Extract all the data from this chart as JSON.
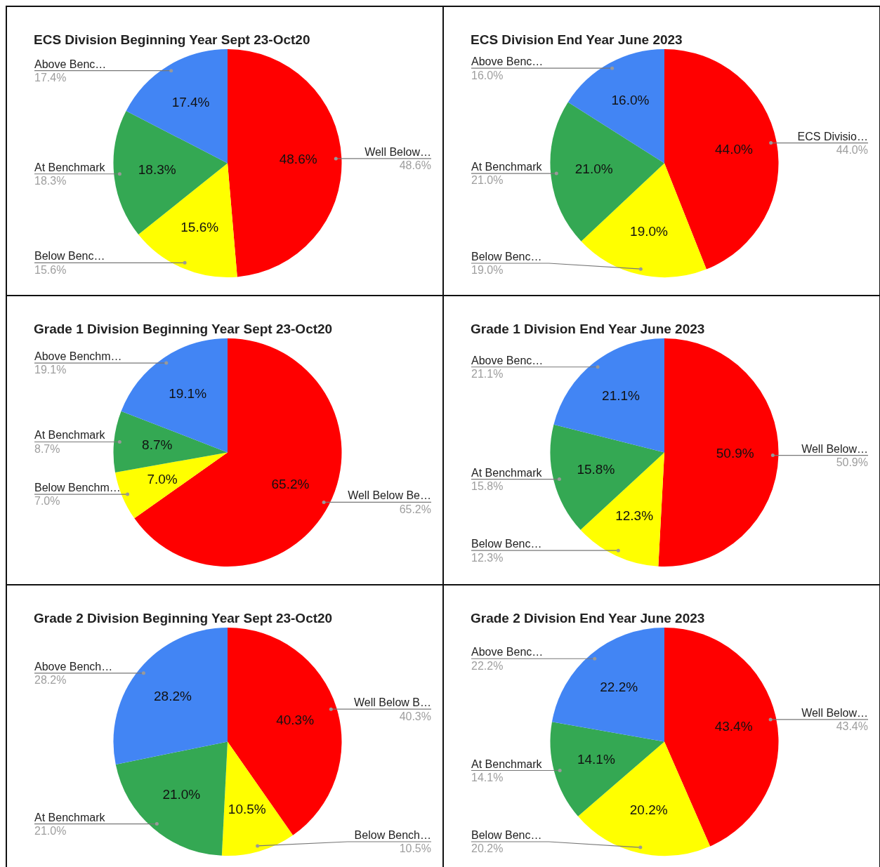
{
  "chart_data": [
    {
      "type": "pie",
      "title": "ECS Division Beginning Year Sept 23-Oct20",
      "categories": [
        "Well Below…",
        "Below Benc…",
        "At Benchmark",
        "Above Benc…"
      ],
      "values": [
        48.6,
        15.6,
        18.3,
        17.4
      ],
      "value_labels": [
        "48.6%",
        "15.6%",
        "18.3%",
        "17.4%"
      ],
      "colors": [
        "#ff0000",
        "#ffff00",
        "#34a853",
        "#4285f4"
      ]
    },
    {
      "type": "pie",
      "title": "ECS Division End Year June 2023",
      "categories": [
        "ECS Divisio…",
        "Below Benc…",
        "At Benchmark",
        "Above Benc…"
      ],
      "values": [
        44.0,
        19.0,
        21.0,
        16.0
      ],
      "value_labels": [
        "44.0%",
        "19.0%",
        "21.0%",
        "16.0%"
      ],
      "colors": [
        "#ff0000",
        "#ffff00",
        "#34a853",
        "#4285f4"
      ]
    },
    {
      "type": "pie",
      "title": "Grade 1 Division Beginning Year Sept 23-Oct20",
      "categories": [
        "Well Below Be…",
        "Below Benchm…",
        "At Benchmark",
        "Above Benchm…"
      ],
      "values": [
        65.2,
        7.0,
        8.7,
        19.1
      ],
      "value_labels": [
        "65.2%",
        "7.0%",
        "8.7%",
        "19.1%"
      ],
      "colors": [
        "#ff0000",
        "#ffff00",
        "#34a853",
        "#4285f4"
      ]
    },
    {
      "type": "pie",
      "title": "Grade 1 Division End Year June 2023",
      "categories": [
        "Well Below…",
        "Below Benc…",
        "At Benchmark",
        "Above Benc…"
      ],
      "values": [
        50.9,
        12.3,
        15.8,
        21.1
      ],
      "value_labels": [
        "50.9%",
        "12.3%",
        "15.8%",
        "21.1%"
      ],
      "colors": [
        "#ff0000",
        "#ffff00",
        "#34a853",
        "#4285f4"
      ]
    },
    {
      "type": "pie",
      "title": "Grade 2 Division Beginning Year Sept 23-Oct20",
      "categories": [
        "Well Below B…",
        "Below Bench…",
        "At Benchmark",
        "Above Bench…"
      ],
      "values": [
        40.3,
        10.5,
        21.0,
        28.2
      ],
      "value_labels": [
        "40.3%",
        "10.5%",
        "21.0%",
        "28.2%"
      ],
      "colors": [
        "#ff0000",
        "#ffff00",
        "#34a853",
        "#4285f4"
      ]
    },
    {
      "type": "pie",
      "title": "Grade 2 Division End Year June 2023",
      "categories": [
        "Well Below…",
        "Below Benc…",
        "At Benchmark",
        "Above Benc…"
      ],
      "values": [
        43.4,
        20.2,
        14.1,
        22.2
      ],
      "value_labels": [
        "43.4%",
        "20.2%",
        "14.1%",
        "22.2%"
      ],
      "colors": [
        "#ff0000",
        "#ffff00",
        "#34a853",
        "#4285f4"
      ]
    }
  ]
}
